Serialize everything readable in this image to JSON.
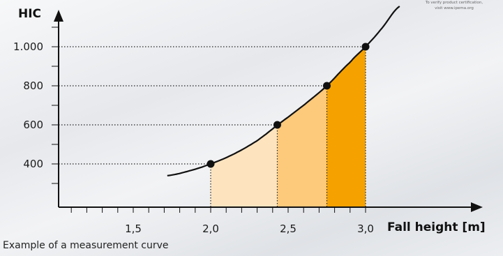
{
  "certification_note": {
    "line1": "To verify product certification,",
    "line2": "visit www.ipema.org"
  },
  "caption": "Example of a measurement curve",
  "chart_data": {
    "type": "area",
    "title": "",
    "xlabel": "Fall height [m]",
    "ylabel": "HIC",
    "xlim": [
      1,
      3.3
    ],
    "ylim": [
      260,
      1160
    ],
    "x_ticks": [
      1.5,
      2.0,
      2.5,
      3.0
    ],
    "x_tick_labels": [
      "1,5",
      "2,0",
      "2,5",
      "3,0"
    ],
    "x_minor_step": 0.1,
    "y_ticks": [
      400,
      600,
      800,
      1000
    ],
    "y_tick_labels": [
      "400",
      "600",
      "800",
      "1.000"
    ],
    "y_minor_step": 100,
    "curve": {
      "x": [
        1.72,
        1.85,
        2.0,
        2.15,
        2.3,
        2.43,
        2.6,
        2.75,
        2.9,
        3.0,
        3.1,
        3.22
      ],
      "y": [
        340,
        362,
        400,
        451,
        519,
        600,
        700,
        800,
        920,
        1000,
        1090,
        1207
      ]
    },
    "points": [
      {
        "x": 2.0,
        "y": 400
      },
      {
        "x": 2.43,
        "y": 600
      },
      {
        "x": 2.75,
        "y": 800
      },
      {
        "x": 3.0,
        "y": 1000
      }
    ],
    "regions": [
      {
        "x_from": 2.0,
        "x_to": 2.43,
        "color": "#fde4bf"
      },
      {
        "x_from": 2.43,
        "x_to": 2.75,
        "color": "#fdc97a"
      },
      {
        "x_from": 2.75,
        "x_to": 3.0,
        "color": "#f5a200"
      }
    ],
    "colors": {
      "curve": "#111111",
      "axis": "#111111",
      "guide": "#222222",
      "point": "#111111"
    },
    "grid": false,
    "legend": "none"
  }
}
